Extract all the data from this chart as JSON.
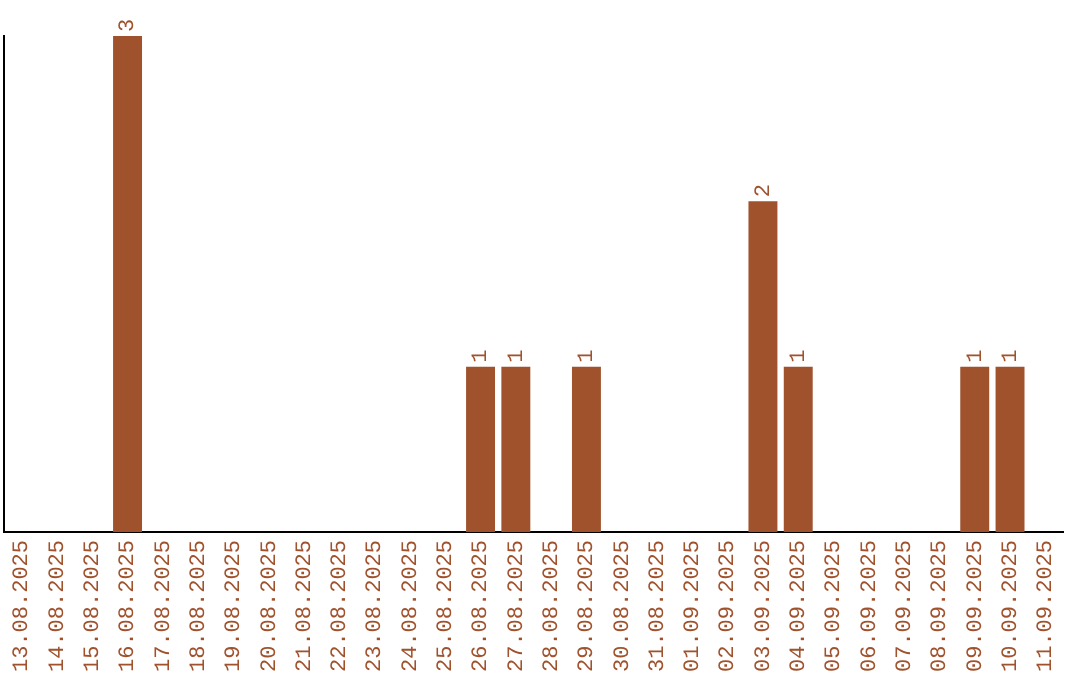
{
  "chart_data": {
    "type": "bar",
    "categories": [
      "13.08.2025",
      "14.08.2025",
      "15.08.2025",
      "16.08.2025",
      "17.08.2025",
      "18.08.2025",
      "19.08.2025",
      "20.08.2025",
      "21.08.2025",
      "22.08.2025",
      "23.08.2025",
      "24.08.2025",
      "25.08.2025",
      "26.08.2025",
      "27.08.2025",
      "28.08.2025",
      "29.08.2025",
      "30.08.2025",
      "31.08.2025",
      "01.09.2025",
      "02.09.2025",
      "03.09.2025",
      "04.09.2025",
      "05.09.2025",
      "06.09.2025",
      "07.09.2025",
      "08.09.2025",
      "09.09.2025",
      "10.09.2025",
      "11.09.2025"
    ],
    "values": [
      0,
      0,
      0,
      3,
      0,
      0,
      0,
      0,
      0,
      0,
      0,
      0,
      0,
      1,
      1,
      0,
      1,
      0,
      0,
      0,
      0,
      2,
      1,
      0,
      0,
      0,
      0,
      1,
      1,
      0
    ],
    "value_labels": [
      null,
      null,
      null,
      "3",
      null,
      null,
      null,
      null,
      null,
      null,
      null,
      null,
      null,
      "1",
      "1",
      null,
      "1",
      null,
      null,
      null,
      null,
      "2",
      "1",
      null,
      null,
      null,
      null,
      "1",
      "1",
      null
    ],
    "color": "#a0522d",
    "grid": false,
    "legend": false,
    "tick_labels": "x"
  }
}
